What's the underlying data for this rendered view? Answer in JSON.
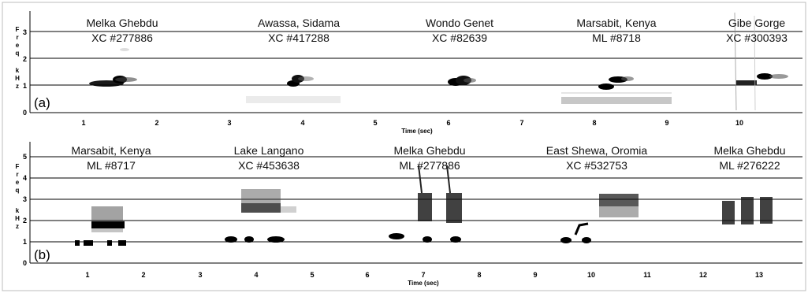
{
  "panels": [
    {
      "id": "a",
      "label": "(a)",
      "x_title": "Time (sec)",
      "y_title_chars": [
        "F",
        "r",
        "e",
        "q",
        "k",
        "H",
        "z"
      ],
      "x_ticks": [
        "1",
        "2",
        "3",
        "4",
        "5",
        "6",
        "7",
        "8",
        "9",
        "10"
      ],
      "y_ticks": [
        "0",
        "1",
        "2",
        "3"
      ],
      "recordings": [
        {
          "site": "Melka Ghebdu",
          "id": "XC #277886"
        },
        {
          "site": "Awassa, Sidama",
          "id": "XC #417288"
        },
        {
          "site": "Wondo Genet",
          "id": "XC #82639"
        },
        {
          "site": "Marsabit, Kenya",
          "id": "ML #8718"
        },
        {
          "site": "Gibe Gorge",
          "id": "XC #300393"
        }
      ]
    },
    {
      "id": "b",
      "label": "(b)",
      "x_title": "Time (sec)",
      "y_title_chars": [
        "F",
        "r",
        "e",
        "q",
        "k",
        "H",
        "z"
      ],
      "x_ticks": [
        "1",
        "2",
        "3",
        "4",
        "5",
        "6",
        "7",
        "8",
        "9",
        "10",
        "11",
        "12",
        "13"
      ],
      "y_ticks": [
        "0",
        "1",
        "2",
        "3",
        "4",
        "5"
      ],
      "recordings": [
        {
          "site": "Marsabit, Kenya",
          "id": "ML #8717"
        },
        {
          "site": "Lake Langano",
          "id": "XC #453638"
        },
        {
          "site": "Melka Ghebdu",
          "id": "ML #277886"
        },
        {
          "site": "East Shewa, Oromia",
          "id": "XC #532753"
        },
        {
          "site": "Melka Ghebdu",
          "id": "ML #276222"
        }
      ]
    }
  ],
  "colors": {
    "ink": "#000000",
    "grid": "#000000",
    "frame": "#bdbdbd"
  }
}
